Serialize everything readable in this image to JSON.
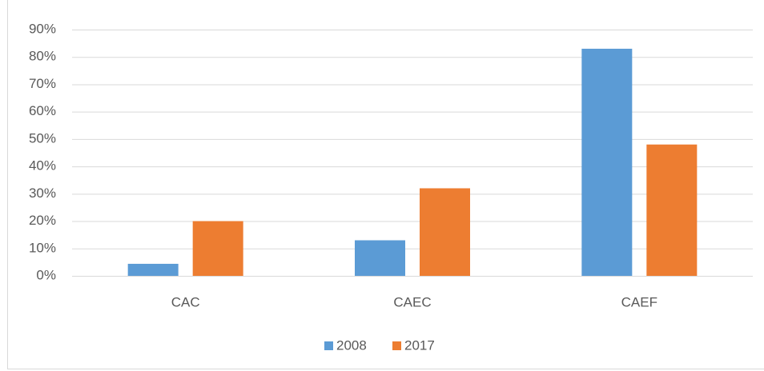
{
  "chart_data": {
    "type": "bar",
    "categories": [
      "CAC",
      "CAEC",
      "CAEF"
    ],
    "series": [
      {
        "name": "2008",
        "color": "#5b9bd5",
        "values": [
          4.4,
          13,
          83
        ]
      },
      {
        "name": "2017",
        "color": "#ed7d31",
        "values": [
          20,
          32,
          48
        ]
      }
    ],
    "ylim": [
      0,
      90
    ],
    "yticks": [
      {
        "value": 0,
        "label": "0%"
      },
      {
        "value": 10,
        "label": "10%"
      },
      {
        "value": 20,
        "label": "20%"
      },
      {
        "value": 30,
        "label": "30%"
      },
      {
        "value": 40,
        "label": "40%"
      },
      {
        "value": 50,
        "label": "50%"
      },
      {
        "value": 60,
        "label": "60%"
      },
      {
        "value": 70,
        "label": "70%"
      },
      {
        "value": 80,
        "label": "80%"
      },
      {
        "value": 90,
        "label": "90%"
      }
    ],
    "grid": true,
    "legend": "bottom"
  }
}
